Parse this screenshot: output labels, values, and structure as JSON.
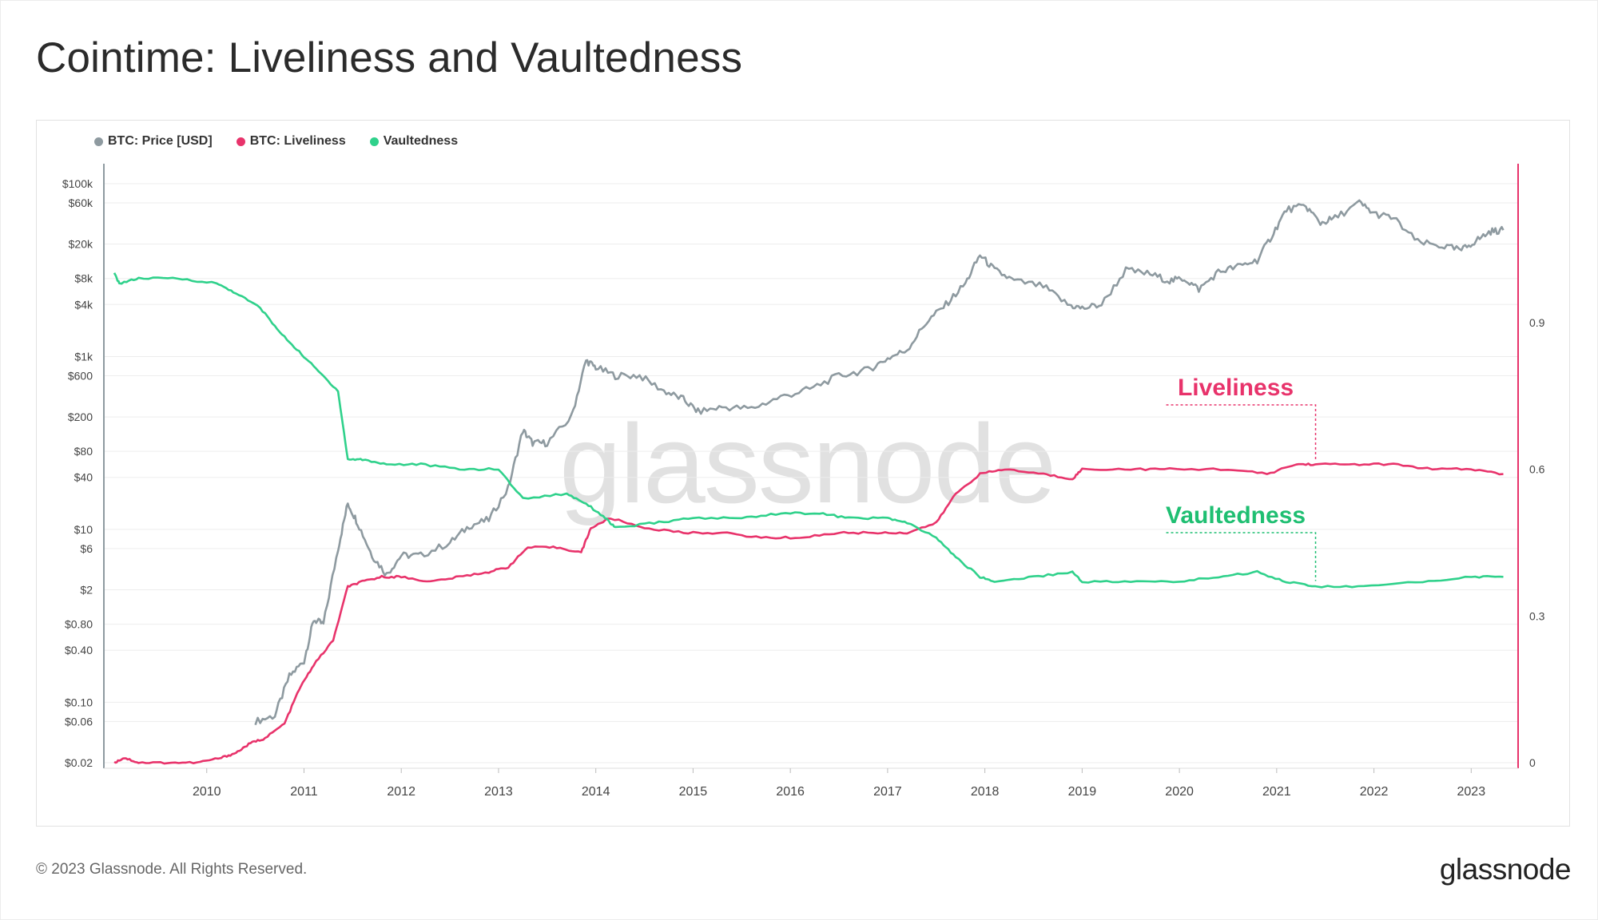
{
  "title": "Cointime: Liveliness and Vaultedness",
  "legend": [
    {
      "label": "BTC: Price [USD]",
      "color": "#8e9aa0"
    },
    {
      "label": "BTC: Liveliness",
      "color": "#e8336b"
    },
    {
      "label": "Vaultedness",
      "color": "#2fd18b"
    }
  ],
  "watermark": "glassnode",
  "footer": {
    "copyright": "© 2023 Glassnode. All Rights Reserved.",
    "logo": "glassnode"
  },
  "annotations": [
    {
      "label": "Liveliness",
      "color": "#e8336b",
      "year": 2021.4,
      "value": 0.61
    },
    {
      "label": "Vaultedness",
      "color": "#1fbf72",
      "year": 2021.4,
      "value": 0.365
    }
  ],
  "chart_data": {
    "type": "line",
    "x_ticks": [
      "2010",
      "2011",
      "2012",
      "2013",
      "2014",
      "2015",
      "2016",
      "2017",
      "2018",
      "2019",
      "2020",
      "2021",
      "2022",
      "2023"
    ],
    "left_axis": {
      "scale": "log",
      "ticks": [
        "$100k",
        "$60k",
        "$20k",
        "$8k",
        "$4k",
        "$1k",
        "$600",
        "$200",
        "$80",
        "$40",
        "$10",
        "$6",
        "$2",
        "$0.80",
        "$0.40",
        "$0.10",
        "$0.06",
        "$0.02"
      ]
    },
    "right_axis": {
      "scale": "linear",
      "ticks": [
        "0.9",
        "0.6",
        "0.3",
        "0"
      ],
      "range": [
        0,
        1.2
      ]
    },
    "x_range": [
      2009.0,
      2023.4
    ],
    "series": [
      {
        "name": "BTC: Price [USD]",
        "color": "#8e9aa0",
        "axis": "left",
        "points": [
          [
            2010.5,
            0.06
          ],
          [
            2010.7,
            0.07
          ],
          [
            2010.85,
            0.2
          ],
          [
            2011.0,
            0.3
          ],
          [
            2011.1,
            0.9
          ],
          [
            2011.2,
            0.8
          ],
          [
            2011.35,
            6
          ],
          [
            2011.45,
            20
          ],
          [
            2011.55,
            12
          ],
          [
            2011.7,
            5
          ],
          [
            2011.85,
            3
          ],
          [
            2012.0,
            5
          ],
          [
            2012.2,
            5
          ],
          [
            2012.5,
            7
          ],
          [
            2012.7,
            11
          ],
          [
            2012.9,
            13
          ],
          [
            2013.1,
            30
          ],
          [
            2013.25,
            140
          ],
          [
            2013.35,
            100
          ],
          [
            2013.5,
            100
          ],
          [
            2013.75,
            200
          ],
          [
            2013.9,
            900
          ],
          [
            2014.0,
            750
          ],
          [
            2014.2,
            600
          ],
          [
            2014.45,
            600
          ],
          [
            2014.7,
            400
          ],
          [
            2014.9,
            320
          ],
          [
            2015.05,
            230
          ],
          [
            2015.3,
            260
          ],
          [
            2015.6,
            250
          ],
          [
            2015.9,
            340
          ],
          [
            2016.2,
            420
          ],
          [
            2016.5,
            600
          ],
          [
            2016.8,
            700
          ],
          [
            2017.0,
            950
          ],
          [
            2017.2,
            1200
          ],
          [
            2017.4,
            2500
          ],
          [
            2017.6,
            4000
          ],
          [
            2017.8,
            7000
          ],
          [
            2017.95,
            15000
          ],
          [
            2018.1,
            10000
          ],
          [
            2018.3,
            7500
          ],
          [
            2018.6,
            6500
          ],
          [
            2018.85,
            4000
          ],
          [
            2019.0,
            3600
          ],
          [
            2019.2,
            4000
          ],
          [
            2019.45,
            10000
          ],
          [
            2019.7,
            9000
          ],
          [
            2019.9,
            7500
          ],
          [
            2020.05,
            8000
          ],
          [
            2020.2,
            6000
          ],
          [
            2020.4,
            9500
          ],
          [
            2020.6,
            11000
          ],
          [
            2020.8,
            13000
          ],
          [
            2020.95,
            25000
          ],
          [
            2021.1,
            50000
          ],
          [
            2021.3,
            55000
          ],
          [
            2021.45,
            35000
          ],
          [
            2021.6,
            40000
          ],
          [
            2021.85,
            60000
          ],
          [
            2022.0,
            45000
          ],
          [
            2022.2,
            40000
          ],
          [
            2022.45,
            21000
          ],
          [
            2022.7,
            19000
          ],
          [
            2022.9,
            17000
          ],
          [
            2023.05,
            22000
          ],
          [
            2023.2,
            28000
          ],
          [
            2023.33,
            29000
          ]
        ]
      },
      {
        "name": "BTC: Liveliness",
        "color": "#e8336b",
        "axis": "right",
        "points": [
          [
            2009.05,
            0.0
          ],
          [
            2009.15,
            0.01
          ],
          [
            2009.3,
            0.0
          ],
          [
            2009.6,
            0.0
          ],
          [
            2009.9,
            0.0
          ],
          [
            2010.15,
            0.01
          ],
          [
            2010.3,
            0.02
          ],
          [
            2010.45,
            0.04
          ],
          [
            2010.6,
            0.05
          ],
          [
            2010.8,
            0.08
          ],
          [
            2010.95,
            0.15
          ],
          [
            2011.1,
            0.2
          ],
          [
            2011.3,
            0.25
          ],
          [
            2011.45,
            0.36
          ],
          [
            2011.6,
            0.37
          ],
          [
            2011.8,
            0.38
          ],
          [
            2012.0,
            0.38
          ],
          [
            2012.3,
            0.37
          ],
          [
            2012.6,
            0.38
          ],
          [
            2012.9,
            0.39
          ],
          [
            2013.1,
            0.4
          ],
          [
            2013.3,
            0.44
          ],
          [
            2013.6,
            0.44
          ],
          [
            2013.85,
            0.43
          ],
          [
            2013.95,
            0.48
          ],
          [
            2014.15,
            0.5
          ],
          [
            2014.5,
            0.48
          ],
          [
            2014.9,
            0.47
          ],
          [
            2015.3,
            0.47
          ],
          [
            2015.7,
            0.46
          ],
          [
            2016.1,
            0.46
          ],
          [
            2016.5,
            0.47
          ],
          [
            2016.9,
            0.47
          ],
          [
            2017.2,
            0.47
          ],
          [
            2017.5,
            0.49
          ],
          [
            2017.7,
            0.55
          ],
          [
            2017.95,
            0.59
          ],
          [
            2018.2,
            0.6
          ],
          [
            2018.6,
            0.59
          ],
          [
            2018.9,
            0.58
          ],
          [
            2019.0,
            0.6
          ],
          [
            2019.5,
            0.6
          ],
          [
            2019.9,
            0.6
          ],
          [
            2020.5,
            0.6
          ],
          [
            2020.9,
            0.59
          ],
          [
            2021.2,
            0.61
          ],
          [
            2021.4,
            0.61
          ],
          [
            2021.8,
            0.61
          ],
          [
            2022.2,
            0.61
          ],
          [
            2022.6,
            0.6
          ],
          [
            2023.0,
            0.6
          ],
          [
            2023.33,
            0.59
          ]
        ]
      },
      {
        "name": "Vaultedness",
        "color": "#2fd18b",
        "axis": "right",
        "points": [
          [
            2009.05,
            1.0
          ],
          [
            2009.1,
            0.98
          ],
          [
            2009.3,
            0.99
          ],
          [
            2009.7,
            0.99
          ],
          [
            2010.1,
            0.98
          ],
          [
            2010.3,
            0.96
          ],
          [
            2010.55,
            0.93
          ],
          [
            2010.75,
            0.88
          ],
          [
            2010.95,
            0.84
          ],
          [
            2011.15,
            0.8
          ],
          [
            2011.35,
            0.76
          ],
          [
            2011.45,
            0.62
          ],
          [
            2011.6,
            0.62
          ],
          [
            2011.85,
            0.61
          ],
          [
            2012.2,
            0.61
          ],
          [
            2012.6,
            0.6
          ],
          [
            2013.0,
            0.6
          ],
          [
            2013.25,
            0.54
          ],
          [
            2013.7,
            0.55
          ],
          [
            2013.9,
            0.53
          ],
          [
            2014.1,
            0.5
          ],
          [
            2014.2,
            0.48
          ],
          [
            2014.6,
            0.49
          ],
          [
            2015.0,
            0.5
          ],
          [
            2015.5,
            0.5
          ],
          [
            2015.9,
            0.51
          ],
          [
            2016.3,
            0.51
          ],
          [
            2016.6,
            0.5
          ],
          [
            2017.0,
            0.5
          ],
          [
            2017.2,
            0.49
          ],
          [
            2017.5,
            0.46
          ],
          [
            2017.7,
            0.42
          ],
          [
            2017.95,
            0.38
          ],
          [
            2018.1,
            0.37
          ],
          [
            2018.5,
            0.38
          ],
          [
            2018.9,
            0.39
          ],
          [
            2019.0,
            0.37
          ],
          [
            2019.5,
            0.37
          ],
          [
            2020.0,
            0.37
          ],
          [
            2020.4,
            0.38
          ],
          [
            2020.8,
            0.39
          ],
          [
            2021.1,
            0.37
          ],
          [
            2021.4,
            0.36
          ],
          [
            2021.9,
            0.36
          ],
          [
            2022.5,
            0.37
          ],
          [
            2023.0,
            0.38
          ],
          [
            2023.33,
            0.38
          ]
        ]
      }
    ]
  }
}
